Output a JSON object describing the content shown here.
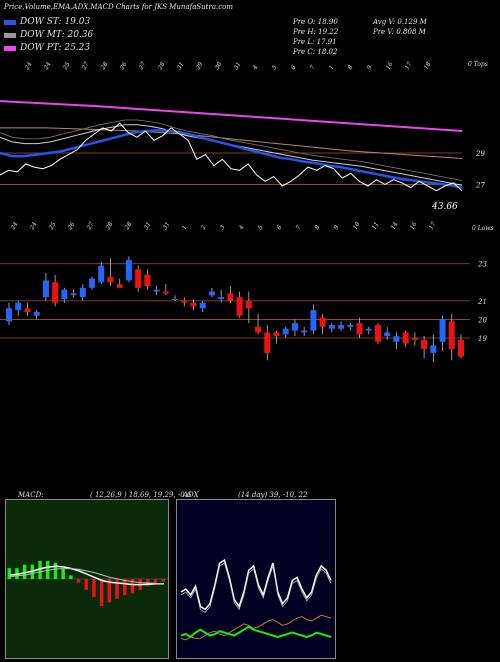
{
  "header": {
    "title": "Price,Volume,EMA,ADX,MACD Charts for JKS MunafaSutra.com",
    "dow_st": "DOW ST: 19.03",
    "dow_mt": "DOW MT: 20.36",
    "dow_pt": "DOW PT: 25.23",
    "pre_o": "Pre   O: 18.90",
    "pre_h": "Pre   H: 19.22",
    "pre_l": "Pre   L: 17.91",
    "pre_c": "Pre   C: 18.02",
    "avg_v": "Avg V: 0.129  M",
    "pre_v": "Pre   V: 0.808  M"
  },
  "colors": {
    "st": "#2255ee",
    "mt": "#999999",
    "pt": "#ee44ee",
    "up": "#2266ff",
    "down": "#ee1111",
    "level": "#a0522d",
    "green": "#11ee11",
    "orange": "#cc7722"
  },
  "chart_data": [
    {
      "type": "line",
      "name": "price-ema",
      "top_date_labels": [
        "24",
        "24",
        "25",
        "27",
        "28",
        "26",
        "27",
        "28",
        "31",
        "29",
        "30",
        "31",
        "4",
        "5",
        "6",
        "7",
        "1",
        "8",
        "9",
        "16",
        "17",
        "18"
      ],
      "level_labels": [
        "29",
        "27"
      ],
      "corner_label": "0 Tops",
      "last_value_label": "43.66",
      "ylim": [
        25.5,
        32.5
      ],
      "series": [
        {
          "role": "price",
          "values": [
            27.6,
            27.9,
            27.8,
            28.3,
            28.1,
            28.0,
            28.2,
            28.6,
            28.9,
            29.2,
            29.8,
            30.2,
            30.6,
            30.4,
            30.9,
            30.3,
            30.0,
            30.4,
            29.8,
            30.1,
            30.6,
            30.2,
            29.8,
            28.6,
            28.9,
            28.2,
            28.6,
            28.0,
            27.9,
            28.3,
            27.6,
            27.2,
            27.5,
            26.9,
            27.2,
            27.6,
            28.1,
            27.9,
            28.2,
            28.0,
            27.4,
            27.7,
            27.2,
            26.9,
            27.3,
            27.0,
            27.3,
            27.1,
            26.8,
            27.2,
            26.9,
            26.6,
            26.9,
            27.1,
            26.6
          ]
        },
        {
          "role": "ema_short",
          "values": [
            29.0,
            28.8,
            28.8,
            28.9,
            29.0,
            29.1,
            29.3,
            29.5,
            29.7,
            29.9,
            30.1,
            30.3,
            30.4,
            30.45,
            30.4,
            30.3,
            30.1,
            29.9,
            29.7,
            29.5,
            29.3,
            29.1,
            28.9,
            28.7,
            28.6,
            28.45,
            28.35,
            28.2,
            28.1,
            27.95,
            27.8,
            27.65,
            27.5,
            27.35,
            27.25,
            27.15,
            27.05,
            26.95,
            26.8
          ]
        },
        {
          "role": "ema_mid",
          "values": [
            30.0,
            29.7,
            29.6,
            29.6,
            29.7,
            29.9,
            30.1,
            30.3,
            30.5,
            30.65,
            30.8,
            30.8,
            30.7,
            30.55,
            30.3,
            30.1,
            29.95,
            29.8,
            29.6,
            29.45,
            29.3,
            29.15,
            29.0,
            28.85,
            28.7,
            28.55,
            28.45,
            28.35,
            28.25,
            28.15,
            28.0,
            27.85,
            27.7,
            27.55,
            27.4,
            27.25,
            27.1,
            26.95
          ]
        },
        {
          "role": "ema_long",
          "values": [
            30.6,
            30.6,
            30.6,
            30.55,
            30.5,
            30.45,
            30.4,
            30.3,
            30.2,
            30.05,
            29.9,
            29.75,
            29.6,
            29.45,
            29.3,
            29.15,
            29.05,
            28.95,
            28.85,
            28.75,
            28.65
          ]
        },
        {
          "role": "dow_pt",
          "values": [
            32.3,
            32.15,
            32.0,
            31.8,
            31.6,
            31.4,
            31.2,
            31.0,
            30.8,
            30.6,
            30.4
          ]
        }
      ]
    },
    {
      "type": "bar",
      "name": "candles",
      "date_labels": [
        "24",
        "24",
        "25",
        "26",
        "27",
        "28",
        "28",
        "31",
        "31",
        "1",
        "2",
        "3",
        "4",
        "5",
        "6",
        "7",
        "8",
        "9",
        "10",
        "11",
        "14",
        "16",
        "17"
      ],
      "level_labels": [
        "23",
        "21",
        "20",
        "19"
      ],
      "corner_label": "0 Lows",
      "ylim": [
        17.6,
        24.6
      ],
      "values": [
        {
          "o": 19.9,
          "h": 20.9,
          "l": 19.7,
          "c": 20.6
        },
        {
          "o": 20.5,
          "h": 21.0,
          "l": 20.2,
          "c": 20.9
        },
        {
          "o": 20.6,
          "h": 20.9,
          "l": 20.2,
          "c": 20.4
        },
        {
          "o": 20.2,
          "h": 20.5,
          "l": 20.0,
          "c": 20.4
        },
        {
          "o": 21.2,
          "h": 22.5,
          "l": 21.0,
          "c": 22.1
        },
        {
          "o": 22.0,
          "h": 22.4,
          "l": 20.7,
          "c": 20.9
        },
        {
          "o": 21.1,
          "h": 21.7,
          "l": 20.9,
          "c": 21.6
        },
        {
          "o": 21.3,
          "h": 21.6,
          "l": 21.2,
          "c": 21.4
        },
        {
          "o": 21.2,
          "h": 21.9,
          "l": 21.0,
          "c": 21.7
        },
        {
          "o": 21.7,
          "h": 22.3,
          "l": 21.6,
          "c": 22.2
        },
        {
          "o": 22.0,
          "h": 23.1,
          "l": 21.9,
          "c": 22.9
        },
        {
          "o": 22.3,
          "h": 23.3,
          "l": 21.8,
          "c": 22.0
        },
        {
          "o": 21.9,
          "h": 22.2,
          "l": 21.8,
          "c": 21.7
        },
        {
          "o": 22.1,
          "h": 23.4,
          "l": 22.0,
          "c": 23.2
        },
        {
          "o": 22.7,
          "h": 22.9,
          "l": 21.5,
          "c": 21.7
        },
        {
          "o": 22.4,
          "h": 22.7,
          "l": 21.6,
          "c": 21.8
        },
        {
          "o": 21.5,
          "h": 21.8,
          "l": 21.3,
          "c": 21.6
        },
        {
          "o": 21.5,
          "h": 21.9,
          "l": 21.3,
          "c": 21.4
        },
        {
          "o": 21.1,
          "h": 21.3,
          "l": 21.0,
          "c": 21.1
        },
        {
          "o": 21.0,
          "h": 21.2,
          "l": 20.7,
          "c": 20.9
        },
        {
          "o": 20.9,
          "h": 21.1,
          "l": 20.5,
          "c": 20.7
        },
        {
          "o": 20.6,
          "h": 21.0,
          "l": 20.4,
          "c": 20.9
        },
        {
          "o": 21.3,
          "h": 21.7,
          "l": 21.2,
          "c": 21.5
        },
        {
          "o": 21.1,
          "h": 21.6,
          "l": 20.9,
          "c": 21.2
        },
        {
          "o": 21.4,
          "h": 21.8,
          "l": 20.9,
          "c": 21.0
        },
        {
          "o": 21.2,
          "h": 21.5,
          "l": 20.1,
          "c": 20.2
        },
        {
          "o": 21.0,
          "h": 21.5,
          "l": 19.8,
          "c": 20.6
        },
        {
          "o": 19.6,
          "h": 20.3,
          "l": 19.2,
          "c": 19.3
        },
        {
          "o": 19.3,
          "h": 19.7,
          "l": 17.8,
          "c": 18.2
        },
        {
          "o": 19.3,
          "h": 19.4,
          "l": 18.7,
          "c": 19.1
        },
        {
          "o": 19.2,
          "h": 19.6,
          "l": 19.0,
          "c": 19.5
        },
        {
          "o": 19.4,
          "h": 20.0,
          "l": 19.1,
          "c": 19.8
        },
        {
          "o": 19.3,
          "h": 19.6,
          "l": 19.1,
          "c": 19.4
        },
        {
          "o": 19.4,
          "h": 20.8,
          "l": 19.2,
          "c": 20.5
        },
        {
          "o": 20.1,
          "h": 20.3,
          "l": 19.2,
          "c": 19.6
        },
        {
          "o": 19.5,
          "h": 19.8,
          "l": 19.3,
          "c": 19.7
        },
        {
          "o": 19.5,
          "h": 19.9,
          "l": 19.4,
          "c": 19.7
        },
        {
          "o": 19.6,
          "h": 19.8,
          "l": 19.4,
          "c": 19.7
        },
        {
          "o": 19.8,
          "h": 20.1,
          "l": 19.0,
          "c": 19.2
        },
        {
          "o": 19.4,
          "h": 19.6,
          "l": 19.2,
          "c": 19.5
        },
        {
          "o": 19.7,
          "h": 19.8,
          "l": 18.7,
          "c": 18.8
        },
        {
          "o": 19.1,
          "h": 19.6,
          "l": 18.9,
          "c": 19.3
        },
        {
          "o": 18.8,
          "h": 19.3,
          "l": 18.4,
          "c": 19.1
        },
        {
          "o": 19.3,
          "h": 19.4,
          "l": 18.5,
          "c": 18.7
        },
        {
          "o": 19.0,
          "h": 19.3,
          "l": 18.6,
          "c": 18.9
        },
        {
          "o": 18.9,
          "h": 19.1,
          "l": 17.9,
          "c": 18.4
        },
        {
          "o": 18.2,
          "h": 19.2,
          "l": 17.7,
          "c": 18.6
        },
        {
          "o": 18.8,
          "h": 20.2,
          "l": 18.3,
          "c": 20.0
        },
        {
          "o": 19.9,
          "h": 20.3,
          "l": 17.8,
          "c": 18.4
        },
        {
          "o": 18.9,
          "h": 19.2,
          "l": 17.9,
          "c": 18.0
        }
      ]
    },
    {
      "type": "line",
      "name": "macd",
      "label": "MACD:",
      "params": "( 12,26,9 ) 18.69,  19.29,  -0.6",
      "macd": [
        0.5,
        0.6,
        0.8,
        1.0,
        1.3,
        1.5,
        1.6,
        1.5,
        1.3,
        1.0,
        0.6,
        0.2,
        -0.2,
        -0.4,
        -0.5,
        -0.6,
        -0.7,
        -0.7,
        -0.65,
        -0.6,
        -0.6
      ],
      "signal": [
        0.3,
        0.4,
        0.5,
        0.7,
        0.9,
        1.1,
        1.25,
        1.3,
        1.3,
        1.2,
        1.0,
        0.8,
        0.5,
        0.2,
        0.0,
        -0.2,
        -0.35,
        -0.45,
        -0.5,
        -0.55,
        -0.58
      ],
      "ylim": [
        -3,
        3
      ]
    },
    {
      "type": "line",
      "name": "adx",
      "label": "ADX",
      "params": "(14  day) 39,  -10,  22",
      "adx": [
        40,
        42,
        38,
        44,
        30,
        28,
        32,
        45,
        60,
        62,
        50,
        35,
        30,
        40,
        55,
        58,
        45,
        38,
        50,
        60,
        40,
        32,
        36,
        48,
        50,
        42,
        36,
        40,
        52,
        58,
        55,
        48
      ],
      "di_plus": [
        10,
        11,
        9,
        12,
        14,
        12,
        10,
        11,
        13,
        12,
        11,
        10,
        12,
        14,
        16,
        14,
        13,
        12,
        11,
        10,
        9,
        10,
        11,
        12,
        11,
        10,
        9,
        10,
        12,
        11,
        10,
        9
      ],
      "di_minus": [
        8,
        7,
        9,
        8,
        8,
        10,
        12,
        13,
        11,
        10,
        12,
        14,
        16,
        18,
        17,
        15,
        16,
        18,
        20,
        21,
        19,
        17,
        18,
        20,
        22,
        23,
        21,
        20,
        22,
        24,
        23,
        22
      ],
      "ylim": [
        0,
        100
      ]
    }
  ]
}
